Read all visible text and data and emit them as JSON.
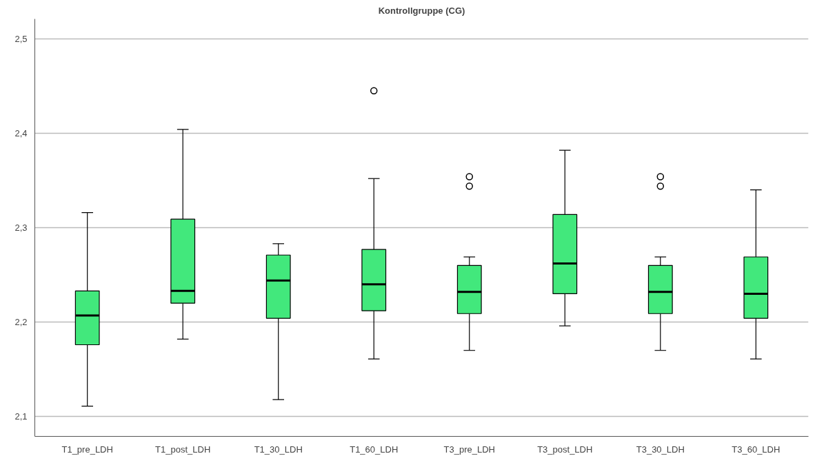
{
  "chart_data": {
    "type": "box",
    "title": "Kontrollgruppe (CG)",
    "categories": [
      "T1_pre_LDH",
      "T1_post_LDH",
      "T1_30_LDH",
      "T1_60_LDH",
      "T3_pre_LDH",
      "T3_post_LDH",
      "T3_30_LDH",
      "T3_60_LDH"
    ],
    "color": "#42e87c",
    "boxes": [
      {
        "low": 2.111,
        "q1": 2.176,
        "median": 2.207,
        "q3": 2.233,
        "high": 2.316
      },
      {
        "low": 2.182,
        "q1": 2.22,
        "median": 2.233,
        "q3": 2.309,
        "high": 2.404
      },
      {
        "low": 2.118,
        "q1": 2.204,
        "median": 2.244,
        "q3": 2.271,
        "high": 2.283
      },
      {
        "low": 2.161,
        "q1": 2.212,
        "median": 2.24,
        "q3": 2.277,
        "high": 2.352,
        "outliers": [
          2.445
        ]
      },
      {
        "low": 2.17,
        "q1": 2.209,
        "median": 2.232,
        "q3": 2.26,
        "high": 2.269,
        "outliers": [
          2.354,
          2.344
        ]
      },
      {
        "low": 2.196,
        "q1": 2.23,
        "median": 2.262,
        "q3": 2.314,
        "high": 2.382
      },
      {
        "low": 2.17,
        "q1": 2.209,
        "median": 2.232,
        "q3": 2.26,
        "high": 2.269,
        "outliers": [
          2.354,
          2.344
        ]
      },
      {
        "low": 2.161,
        "q1": 2.204,
        "median": 2.23,
        "q3": 2.269,
        "high": 2.34
      }
    ],
    "ylim": [
      2.079,
      2.521
    ],
    "yticks": [
      {
        "value": 2.1,
        "label": "2,1"
      },
      {
        "value": 2.2,
        "label": "2,2"
      },
      {
        "value": 2.3,
        "label": "2,3"
      },
      {
        "value": 2.4,
        "label": "2,4"
      },
      {
        "value": 2.5,
        "label": "2,5"
      }
    ],
    "grid": "y"
  }
}
